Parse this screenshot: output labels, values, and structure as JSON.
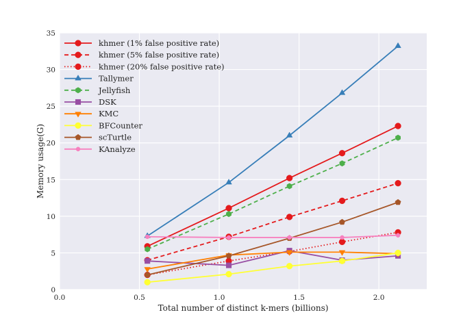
{
  "chart_data": {
    "type": "line",
    "title": "",
    "xlabel": "Total number of distinct k-mers (billions)",
    "ylabel": "Memory usage(G)",
    "xlim": [
      0.0,
      2.3
    ],
    "ylim": [
      0,
      35
    ],
    "xticks": [
      "0.0",
      "0.5",
      "1.0",
      "1.5",
      "2.0"
    ],
    "yticks": [
      "0",
      "5",
      "10",
      "15",
      "20",
      "25",
      "30",
      "35"
    ],
    "grid": true,
    "legend_position": "top-left",
    "x": [
      0.55,
      1.06,
      1.44,
      1.77,
      2.12
    ],
    "series": [
      {
        "name": "khmer (1% false positive rate)",
        "color": "#e41a1c",
        "dash": "solid",
        "marker": "circle",
        "values": [
          5.9,
          11.1,
          15.2,
          18.6,
          22.3
        ]
      },
      {
        "name": "khmer (5% false positive rate)",
        "color": "#e41a1c",
        "dash": "dashed",
        "marker": "circle",
        "values": [
          4.0,
          7.2,
          9.9,
          12.1,
          14.5
        ]
      },
      {
        "name": "khmer (20% false positive rate)",
        "color": "#e41a1c",
        "dash": "dotted",
        "marker": "circle",
        "values": [
          2.0,
          3.9,
          5.2,
          6.5,
          7.8
        ]
      },
      {
        "name": "Tallymer",
        "color": "#377eb8",
        "dash": "solid",
        "marker": "triangle",
        "values": [
          7.3,
          14.6,
          21.0,
          26.8,
          33.2
        ]
      },
      {
        "name": "Jellyfish",
        "color": "#4daf4a",
        "dash": "dashed",
        "marker": "hexagon",
        "values": [
          5.5,
          10.3,
          14.1,
          17.2,
          20.7
        ]
      },
      {
        "name": "DSK",
        "color": "#984ea3",
        "dash": "solid",
        "marker": "square",
        "values": [
          3.9,
          3.3,
          5.3,
          4.0,
          4.6
        ]
      },
      {
        "name": "KMC",
        "color": "#ff7f00",
        "dash": "solid",
        "marker": "triangle-down",
        "values": [
          2.8,
          4.7,
          5.1,
          5.1,
          4.9
        ]
      },
      {
        "name": "BFCounter",
        "color": "#ffff33",
        "dash": "solid",
        "marker": "circle",
        "values": [
          1.0,
          2.1,
          3.2,
          3.9,
          5.0
        ]
      },
      {
        "name": "scTurtle",
        "color": "#a65628",
        "dash": "solid",
        "marker": "pentagon",
        "values": [
          2.0,
          4.6,
          7.0,
          9.2,
          11.9
        ]
      },
      {
        "name": "KAnalyze",
        "color": "#f781bf",
        "dash": "solid",
        "marker": "small-circle",
        "values": [
          7.2,
          7.1,
          7.1,
          7.1,
          7.4
        ]
      }
    ]
  }
}
